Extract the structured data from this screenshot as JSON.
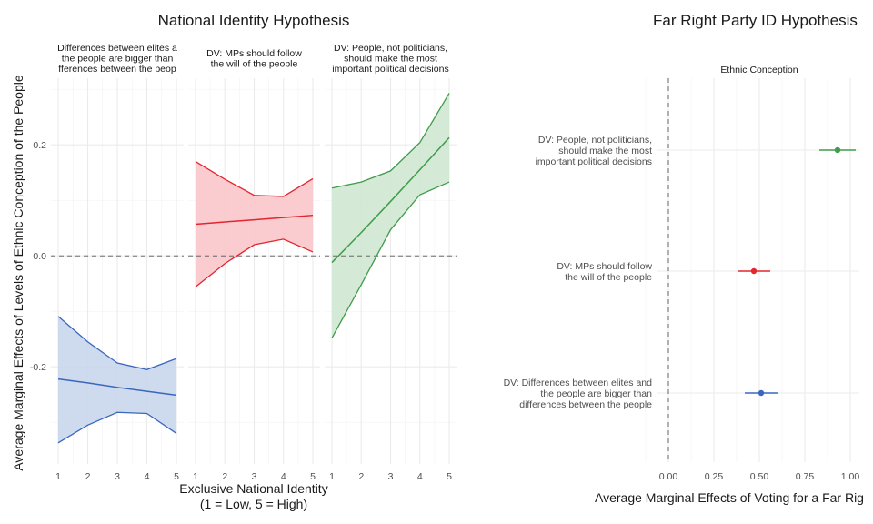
{
  "chart_data": [
    {
      "type": "line",
      "title": "National Identity Hypothesis",
      "xlabel": [
        "Exclusive National Identity",
        "(1 = Low, 5 = High)"
      ],
      "ylabel": "Average Marginal Effects of Levels of Ethnic Conception of the People",
      "ylim": [
        -0.375,
        0.32
      ],
      "yticks": [
        0.2,
        0.0,
        -0.2
      ],
      "ytick_labels": [
        "0.2",
        "0.0",
        "-0.2"
      ],
      "xticks": [
        1,
        2,
        3,
        4,
        5
      ],
      "xtick_labels": [
        "1",
        "2",
        "3",
        "4",
        "5"
      ],
      "reference_line": 0,
      "grid": true,
      "panels": [
        {
          "strip": [
            "Differences between elites a",
            "the people are bigger than",
            "fferences between the peop"
          ],
          "color": "#3A67BD",
          "fill": "#C9D6EC",
          "x": [
            1,
            2,
            3,
            4,
            5
          ],
          "estimate": [
            -0.222,
            -0.229,
            -0.237,
            -0.244,
            -0.251
          ],
          "upper": [
            -0.109,
            -0.155,
            -0.193,
            -0.205,
            -0.185
          ],
          "lower": [
            -0.337,
            -0.305,
            -0.282,
            -0.284,
            -0.32
          ]
        },
        {
          "strip": [
            "DV: MPs should follow",
            "the will of the people"
          ],
          "color": "#E3252F",
          "fill": "#F9C6CA",
          "x": [
            1,
            2,
            3,
            4,
            5
          ],
          "estimate": [
            0.057,
            0.061,
            0.065,
            0.069,
            0.073
          ],
          "upper": [
            0.17,
            0.138,
            0.109,
            0.107,
            0.139
          ],
          "lower": [
            -0.056,
            -0.014,
            0.02,
            0.03,
            0.007
          ]
        },
        {
          "strip": [
            "DV: People, not politicians,",
            "should make the most",
            "important political decisions"
          ],
          "color": "#3F9C4A",
          "fill": "#CFE7D1",
          "x": [
            1,
            2,
            3,
            4,
            5
          ],
          "estimate": [
            -0.012,
            0.042,
            0.098,
            0.155,
            0.213
          ],
          "upper": [
            0.122,
            0.133,
            0.153,
            0.204,
            0.293
          ],
          "lower": [
            -0.148,
            -0.052,
            0.047,
            0.11,
            0.133
          ]
        }
      ]
    },
    {
      "type": "scatter",
      "title": "Far Right Party ID Hypothesis",
      "strip": "Ethnic Conception",
      "xlabel": "Average Marginal Effects of Voting for a Far Rig",
      "xlim": [
        0,
        1.08
      ],
      "xticks": [
        0,
        0.25,
        0.5,
        0.75,
        1
      ],
      "xtick_labels": [
        "0.00",
        "0.25",
        "0.50",
        "0.75",
        "1.00"
      ],
      "reference_line": 0,
      "grid": true,
      "points": [
        {
          "label": [
            "DV: People, not politicians,",
            "should make the most",
            "important political decisions"
          ],
          "estimate": 0.93,
          "lower": 0.83,
          "upper": 1.03,
          "color": "#3F9C4A"
        },
        {
          "label": [
            "DV: MPs should follow",
            "the will of the people"
          ],
          "estimate": 0.47,
          "lower": 0.38,
          "upper": 0.56,
          "color": "#E3252F"
        },
        {
          "label": [
            "DV: Differences between elites and",
            "the people are bigger than",
            "differences between the people"
          ],
          "estimate": 0.51,
          "lower": 0.42,
          "upper": 0.6,
          "color": "#3A67BD"
        }
      ]
    }
  ]
}
